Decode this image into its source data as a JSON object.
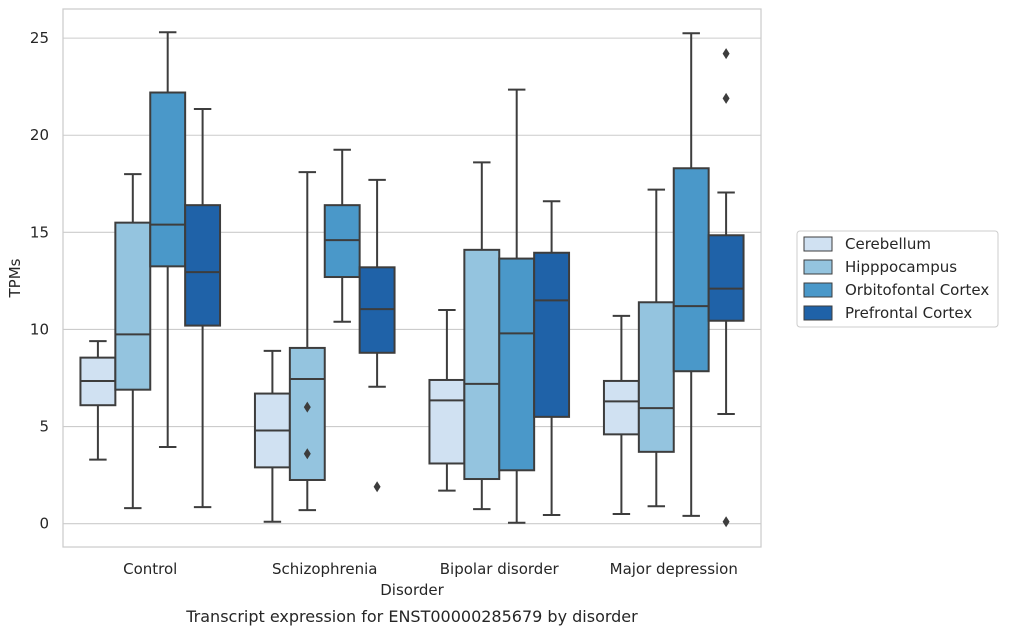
{
  "chart_data": {
    "type": "box",
    "title": "",
    "caption": "Transcript expression for ENST00000285679 by disorder",
    "xlabel": "Disorder",
    "ylabel": "TPMs",
    "ylim": [
      -1.2,
      26.5
    ],
    "yticks": [
      0,
      5,
      10,
      15,
      20,
      25
    ],
    "grid": true,
    "legend_position": "right",
    "categories": [
      "Control",
      "Schizophrenia",
      "Bipolar disorder",
      "Major depression"
    ],
    "series": [
      {
        "name": "Cerebellum",
        "color": "#d0e1f2",
        "boxes": [
          {
            "whislo": 3.3,
            "q1": 6.1,
            "med": 7.35,
            "q3": 8.55,
            "whishi": 9.4,
            "fliers": []
          },
          {
            "whislo": 0.1,
            "q1": 2.9,
            "med": 4.8,
            "q3": 6.7,
            "whishi": 8.9,
            "fliers": []
          },
          {
            "whislo": 1.7,
            "q1": 3.1,
            "med": 6.35,
            "q3": 7.4,
            "whishi": 11.0,
            "fliers": []
          },
          {
            "whislo": 0.5,
            "q1": 4.6,
            "med": 6.3,
            "q3": 7.35,
            "whishi": 10.7,
            "fliers": []
          }
        ]
      },
      {
        "name": "Hipppocampus",
        "color": "#94c4df",
        "boxes": [
          {
            "whislo": 0.8,
            "q1": 6.9,
            "med": 9.75,
            "q3": 15.5,
            "whishi": 18.0,
            "fliers": []
          },
          {
            "whislo": 0.7,
            "q1": 2.25,
            "med": 7.45,
            "q3": 9.05,
            "whishi": 18.1,
            "fliers": [
              3.6,
              6.0
            ]
          },
          {
            "whislo": 0.75,
            "q1": 2.3,
            "med": 7.2,
            "q3": 14.1,
            "whishi": 18.6,
            "fliers": []
          },
          {
            "whislo": 0.9,
            "q1": 3.7,
            "med": 5.95,
            "q3": 11.4,
            "whishi": 17.2,
            "fliers": []
          }
        ]
      },
      {
        "name": "Orbitofontal Cortex",
        "color": "#4a98c9",
        "boxes": [
          {
            "whislo": 3.95,
            "q1": 13.25,
            "med": 15.4,
            "q3": 22.2,
            "whishi": 25.3,
            "fliers": []
          },
          {
            "whislo": 10.4,
            "q1": 12.7,
            "med": 14.6,
            "q3": 16.4,
            "whishi": 19.25,
            "fliers": []
          },
          {
            "whislo": 0.05,
            "q1": 2.75,
            "med": 9.8,
            "q3": 13.65,
            "whishi": 22.35,
            "fliers": []
          },
          {
            "whislo": 0.4,
            "q1": 7.85,
            "med": 11.2,
            "q3": 18.3,
            "whishi": 25.25,
            "fliers": []
          }
        ]
      },
      {
        "name": "Prefrontal Cortex",
        "color": "#1f62a8",
        "boxes": [
          {
            "whislo": 0.85,
            "q1": 10.2,
            "med": 12.95,
            "q3": 16.4,
            "whishi": 21.35,
            "fliers": []
          },
          {
            "whislo": 7.05,
            "q1": 8.8,
            "med": 11.05,
            "q3": 13.2,
            "whishi": 17.7,
            "fliers": [
              1.9
            ]
          },
          {
            "whislo": 0.45,
            "q1": 5.5,
            "med": 11.5,
            "q3": 13.95,
            "whishi": 16.6,
            "fliers": []
          },
          {
            "whislo": 5.65,
            "q1": 10.45,
            "med": 12.1,
            "q3": 14.85,
            "whishi": 17.05,
            "fliers": [
              0.1,
              21.9,
              24.2
            ]
          }
        ]
      }
    ]
  }
}
